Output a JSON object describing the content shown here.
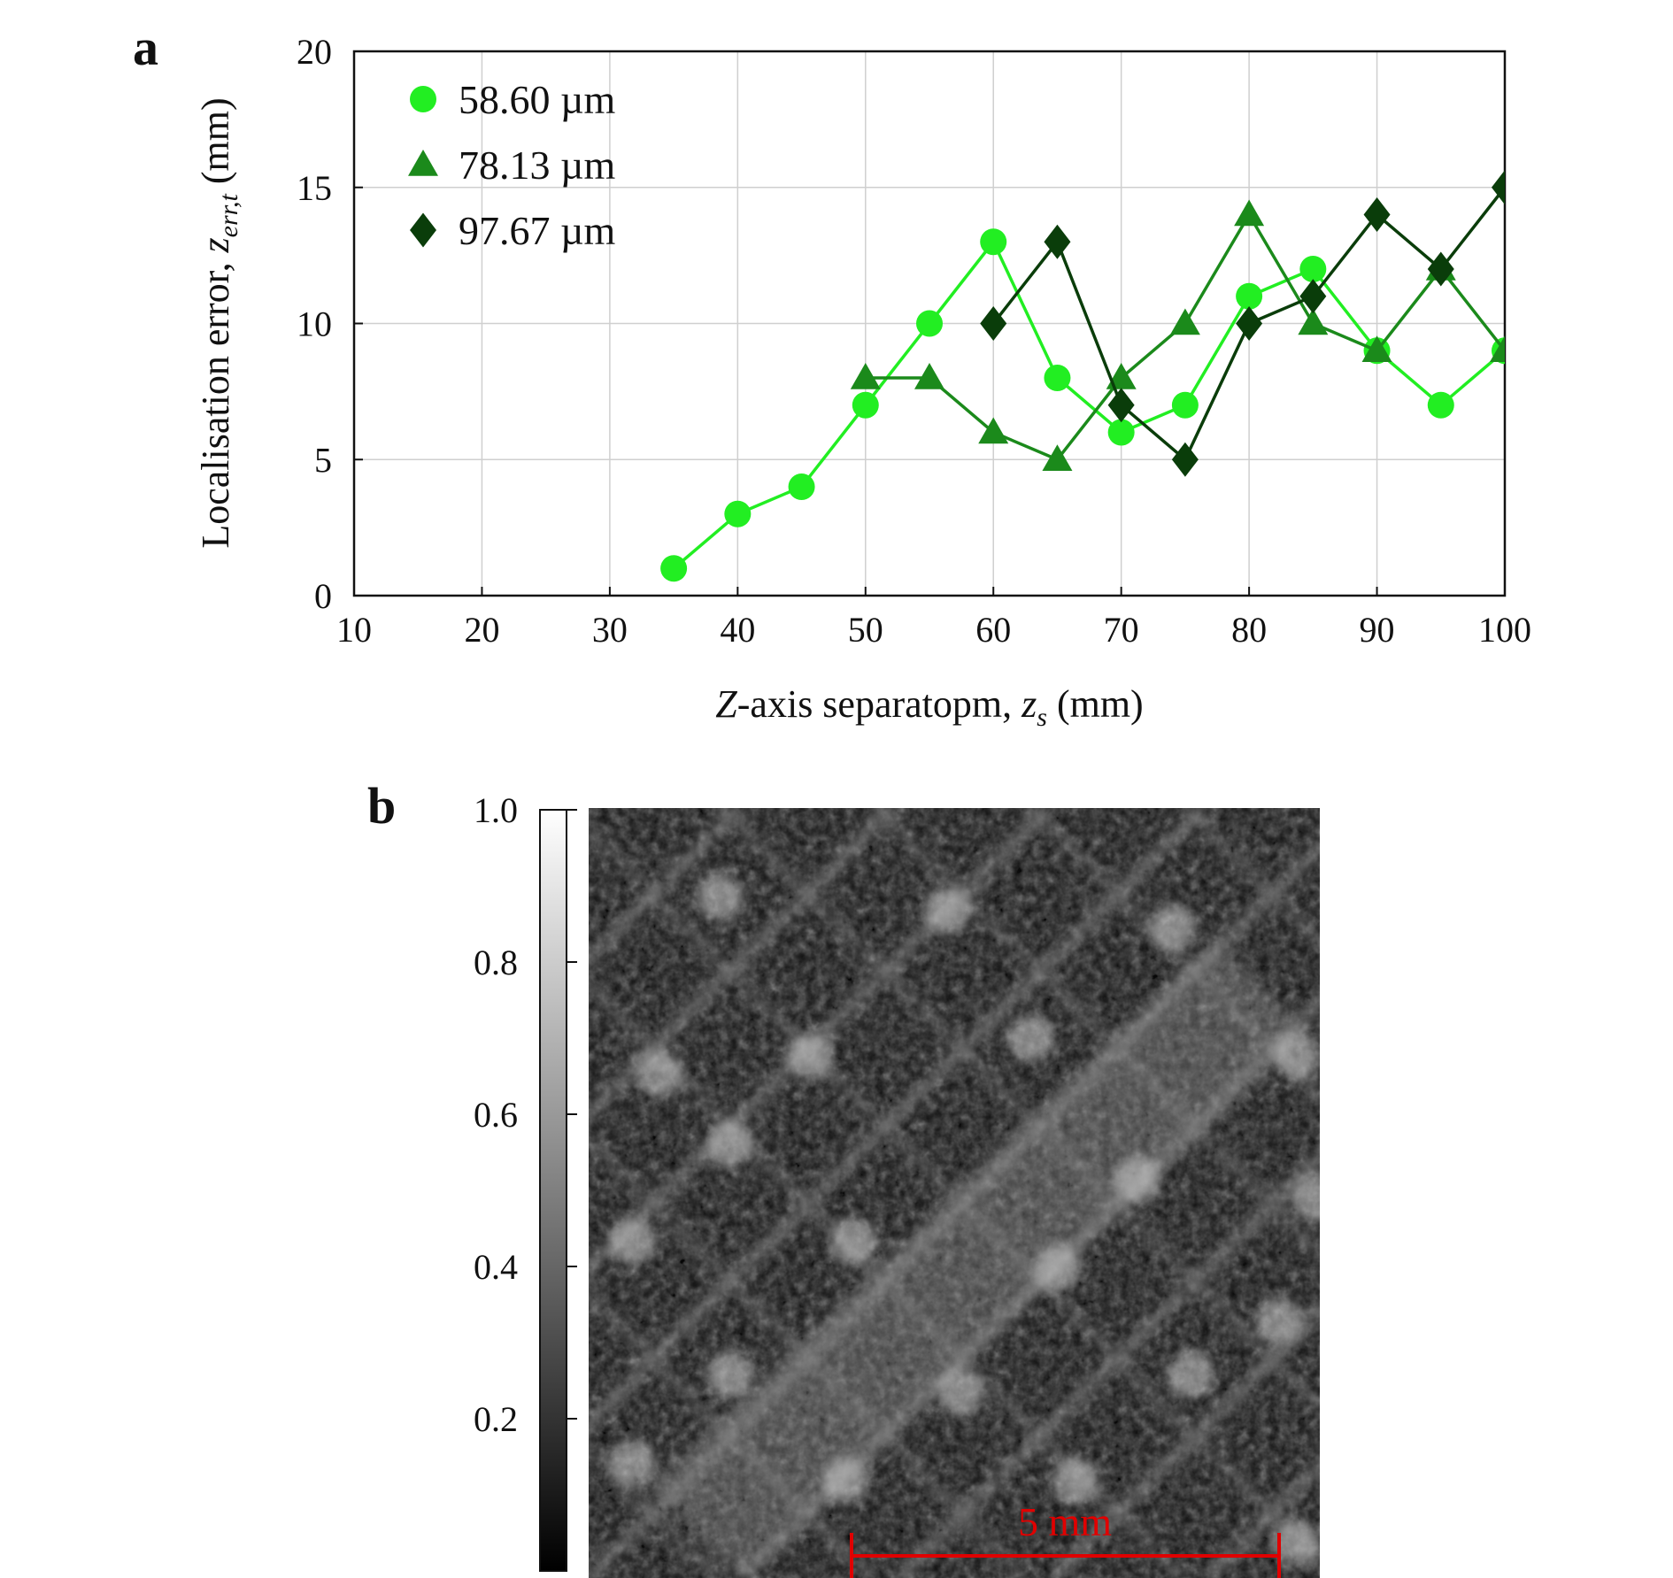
{
  "chart_data": [
    {
      "type": "line",
      "panel": "a",
      "xlabel_parts": [
        "Z",
        "-axis separatopm, ",
        "z",
        "s",
        " (mm)"
      ],
      "ylabel_parts": [
        "Localisation error, ",
        "z",
        "err,t",
        " (mm)"
      ],
      "xlim": [
        10,
        100
      ],
      "ylim": [
        0,
        20
      ],
      "xticks": [
        "10",
        "20",
        "30",
        "40",
        "50",
        "60",
        "70",
        "80",
        "90",
        "100"
      ],
      "yticks": [
        "0",
        "5",
        "10",
        "15",
        "20"
      ],
      "grid": true,
      "legend_position": "top-left",
      "series": [
        {
          "name": "58.60 µm",
          "color": "#22ee22",
          "marker": "circle",
          "x": [
            35,
            40,
            45,
            50,
            55,
            60,
            65,
            70,
            75,
            80,
            85,
            90,
            95,
            100
          ],
          "y": [
            1,
            3,
            4,
            7,
            10,
            13,
            8,
            6,
            7,
            11,
            12,
            9,
            7,
            9
          ]
        },
        {
          "name": "78.13 µm",
          "color": "#1b8a1b",
          "marker": "triangle",
          "x": [
            50,
            55,
            60,
            65,
            70,
            75,
            80,
            85,
            90,
            95,
            100
          ],
          "y": [
            8,
            8,
            6,
            5,
            8,
            10,
            14,
            10,
            9,
            12,
            9
          ]
        },
        {
          "name": "97.67 µm",
          "color": "#0a3d0a",
          "marker": "diamond",
          "x": [
            60,
            65,
            70,
            75,
            80,
            85,
            90,
            95,
            100
          ],
          "y": [
            10,
            13,
            7,
            5,
            10,
            11,
            14,
            12,
            15
          ]
        }
      ]
    },
    {
      "type": "heatmap",
      "panel": "b",
      "colormap": "grayscale",
      "colorbar_ticks": [
        "1.0",
        "0.8",
        "0.6",
        "0.4",
        "0.2"
      ],
      "colorbar_range": [
        0,
        1.0
      ],
      "scale_bar_label": "5 mm",
      "scale_bar_color": "#e00000"
    }
  ]
}
